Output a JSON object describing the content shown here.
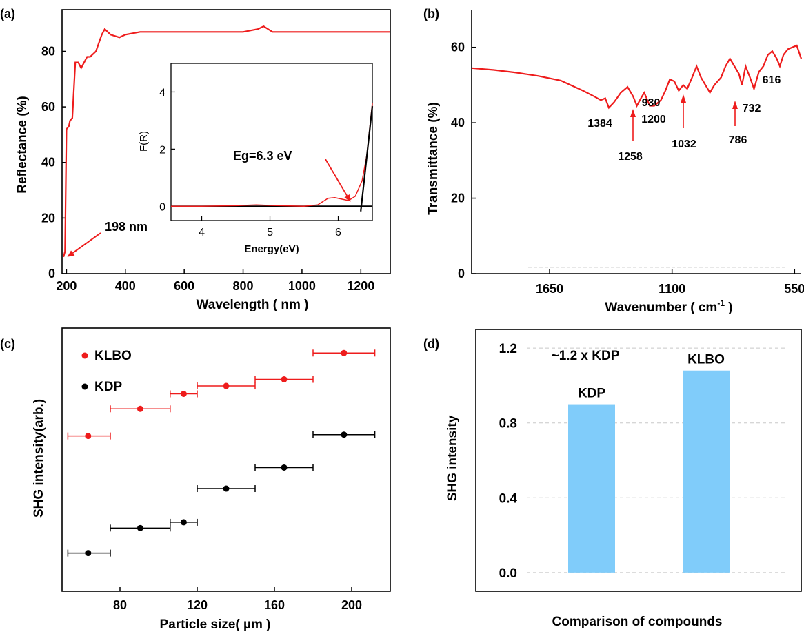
{
  "colors": {
    "red": "#ee1c1c",
    "black": "#000000",
    "bar": "#80ccfa",
    "grid": "#c8c8c8"
  },
  "chart_data": [
    {
      "panel": "(a)",
      "type": "line",
      "xlabel": "Wavelength ( nm )",
      "ylabel": "Reflectance (%)",
      "xlim": [
        185,
        1300
      ],
      "ylim": [
        0,
        95
      ],
      "xticks": [
        "200",
        "400",
        "600",
        "800",
        "1000",
        "1200"
      ],
      "yticks": [
        "0",
        "20",
        "40",
        "60",
        "80"
      ],
      "series": [
        {
          "color": "#ee1c1c",
          "x": [
            190,
            195,
            200,
            208,
            212,
            220,
            230,
            240,
            250,
            270,
            280,
            300,
            320,
            330,
            350,
            380,
            400,
            450,
            500,
            600,
            700,
            800,
            850,
            870,
            900,
            1000,
            1100,
            1200,
            1300
          ],
          "y": [
            6,
            8,
            52,
            53,
            55,
            56,
            76,
            76,
            74,
            78,
            78,
            80,
            86,
            88,
            86,
            85,
            86,
            87,
            87,
            87,
            87,
            87,
            88,
            89,
            87,
            87,
            87,
            87,
            87
          ]
        }
      ],
      "annotations": [
        {
          "text": "198 nm",
          "x": 198,
          "y": 6
        }
      ],
      "inset": {
        "xlabel": "Energy(eV)",
        "ylabel": "F(R)",
        "xlim": [
          3.55,
          6.5
        ],
        "ylim": [
          -0.5,
          5
        ],
        "xticks": [
          "4",
          "5",
          "6"
        ],
        "yticks": [
          "0",
          "2",
          "4"
        ],
        "series": [
          {
            "color": "#ee1c1c",
            "x": [
              3.55,
              4.0,
              4.5,
              4.8,
              5.0,
              5.5,
              5.7,
              5.85,
              5.95,
              6.05,
              6.15,
              6.25,
              6.35,
              6.42,
              6.5
            ],
            "y": [
              0.0,
              0.0,
              0.02,
              0.05,
              0.03,
              0.0,
              0.05,
              0.28,
              0.3,
              0.25,
              0.2,
              0.35,
              0.9,
              1.8,
              3.6
            ]
          }
        ],
        "fit": {
          "color": "#000000",
          "x": [
            6.33,
            6.5
          ],
          "y": [
            -0.18,
            3.5
          ]
        },
        "baseline": {
          "color": "#000000",
          "y": 0
        },
        "annotations": [
          {
            "text": "Eg=6.3  eV",
            "x": 6.1,
            "y": 0.3
          }
        ]
      }
    },
    {
      "panel": "(b)",
      "type": "line",
      "xlabel": "Wavenumber ( cm",
      "xlabel_sup": "-1",
      "xlabel_end": " )",
      "ylabel": "Transmittance (%)",
      "xlim": [
        2000,
        520
      ],
      "ylim": [
        0,
        70
      ],
      "xticks": [
        "1650",
        "1100",
        "550"
      ],
      "xtick_values": [
        1650,
        1100,
        550
      ],
      "yticks": [
        "0",
        "20",
        "40",
        "60"
      ],
      "series": [
        {
          "color": "#ee1c1c",
          "x": [
            2000,
            1900,
            1800,
            1700,
            1600,
            1500,
            1450,
            1420,
            1400,
            1384,
            1360,
            1330,
            1300,
            1275,
            1258,
            1240,
            1225,
            1200,
            1180,
            1150,
            1130,
            1110,
            1090,
            1070,
            1050,
            1032,
            1010,
            990,
            970,
            950,
            930,
            910,
            880,
            860,
            840,
            820,
            800,
            786,
            770,
            750,
            732,
            710,
            690,
            670,
            650,
            630,
            616,
            600,
            580,
            560,
            540,
            520
          ],
          "y": [
            54.5,
            54,
            53.3,
            52.4,
            51.2,
            48.5,
            47,
            46,
            46.5,
            44,
            45.5,
            48,
            49.5,
            47,
            44.5,
            46.5,
            48,
            44.5,
            44.5,
            46,
            48.5,
            51.5,
            51,
            48.5,
            50,
            49,
            52,
            55,
            52,
            50,
            48,
            50,
            52,
            55,
            57,
            55,
            53,
            50,
            55,
            52,
            49,
            53.5,
            55,
            58,
            59,
            57,
            55,
            58,
            59.5,
            60,
            60.5,
            57
          ]
        }
      ],
      "labels": [
        {
          "text": "1384",
          "x": 1384,
          "y": 44
        },
        {
          "text": "1258",
          "x": 1258,
          "y": 44.5
        },
        {
          "text": "1200",
          "x": 1200,
          "y": 44.5
        },
        {
          "text": "1032",
          "x": 1032,
          "y": 49
        },
        {
          "text": "930",
          "x": 930,
          "y": 48
        },
        {
          "text": "786",
          "x": 786,
          "y": 50
        },
        {
          "text": "732",
          "x": 732,
          "y": 49
        },
        {
          "text": "616",
          "x": 616,
          "y": 55
        }
      ]
    },
    {
      "panel": "(c)",
      "type": "scatter",
      "xlabel": "Particle size( µm )",
      "ylabel": "SHG intensity(arb.)",
      "xlim": [
        50,
        220
      ],
      "ylim": [
        0,
        10
      ],
      "xticks": [
        "80",
        "120",
        "160",
        "200"
      ],
      "xtick_values": [
        80,
        120,
        160,
        200
      ],
      "legend_position": "top-left",
      "series": [
        {
          "name": "KLBO",
          "color": "#ee1c1c",
          "x": [
            63.5,
            90.5,
            113,
            135,
            165,
            196
          ],
          "xerr_low": [
            53,
            75,
            106,
            120,
            150,
            180
          ],
          "xerr_high": [
            75,
            106,
            120,
            150,
            180,
            212
          ],
          "y": [
            5.9,
            6.93,
            7.5,
            7.8,
            8.05,
            9.05
          ]
        },
        {
          "name": "KDP",
          "color": "#000000",
          "x": [
            63.5,
            90.5,
            113,
            135,
            165,
            196
          ],
          "xerr_low": [
            53,
            75,
            106,
            120,
            150,
            180
          ],
          "xerr_high": [
            75,
            106,
            120,
            150,
            180,
            212
          ],
          "y": [
            1.45,
            2.4,
            2.62,
            3.9,
            4.7,
            5.95
          ]
        }
      ]
    },
    {
      "panel": "(d)",
      "type": "bar",
      "xlabel": "Comparison of compounds",
      "ylabel": "SHG intensity",
      "ylim": [
        -0.1,
        1.3
      ],
      "yticks": [
        "0.0",
        "0.4",
        "0.8",
        "1.2"
      ],
      "ytick_values": [
        0.0,
        0.4,
        0.8,
        1.2
      ],
      "grid": true,
      "categories": [
        "KDP",
        "KLBO"
      ],
      "values": [
        0.9,
        1.08
      ],
      "annotation": "~1.2 x KDP"
    }
  ]
}
